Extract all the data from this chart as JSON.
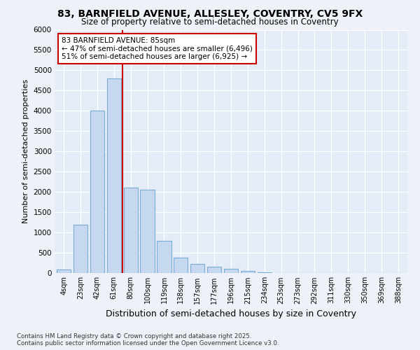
{
  "title1": "83, BARNFIELD AVENUE, ALLESLEY, COVENTRY, CV5 9FX",
  "title2": "Size of property relative to semi-detached houses in Coventry",
  "xlabel": "Distribution of semi-detached houses by size in Coventry",
  "ylabel": "Number of semi-detached properties",
  "categories": [
    "4sqm",
    "23sqm",
    "42sqm",
    "61sqm",
    "80sqm",
    "100sqm",
    "119sqm",
    "138sqm",
    "157sqm",
    "177sqm",
    "196sqm",
    "215sqm",
    "234sqm",
    "253sqm",
    "273sqm",
    "292sqm",
    "311sqm",
    "330sqm",
    "350sqm",
    "369sqm",
    "388sqm"
  ],
  "values": [
    80,
    1200,
    4000,
    4800,
    2100,
    2050,
    800,
    380,
    225,
    150,
    100,
    50,
    20,
    8,
    5,
    3,
    2,
    1,
    0,
    0,
    0
  ],
  "bar_color": "#c5d8ef",
  "bar_edge_color": "#7aadd4",
  "vline_color": "#cc0000",
  "vline_pos": 3.5,
  "annotation_title": "83 BARNFIELD AVENUE: 85sqm",
  "annotation_line1": "← 47% of semi-detached houses are smaller (6,496)",
  "annotation_line2": "51% of semi-detached houses are larger (6,925) →",
  "annotation_box_facecolor": "#ffffff",
  "annotation_box_edgecolor": "#cc0000",
  "ylim": [
    0,
    6000
  ],
  "yticks": [
    0,
    500,
    1000,
    1500,
    2000,
    2500,
    3000,
    3500,
    4000,
    4500,
    5000,
    5500,
    6000
  ],
  "footnote1": "Contains HM Land Registry data © Crown copyright and database right 2025.",
  "footnote2": "Contains public sector information licensed under the Open Government Licence v3.0.",
  "bg_color": "#eef2f8",
  "plot_bg_color": "#e4ecf7"
}
